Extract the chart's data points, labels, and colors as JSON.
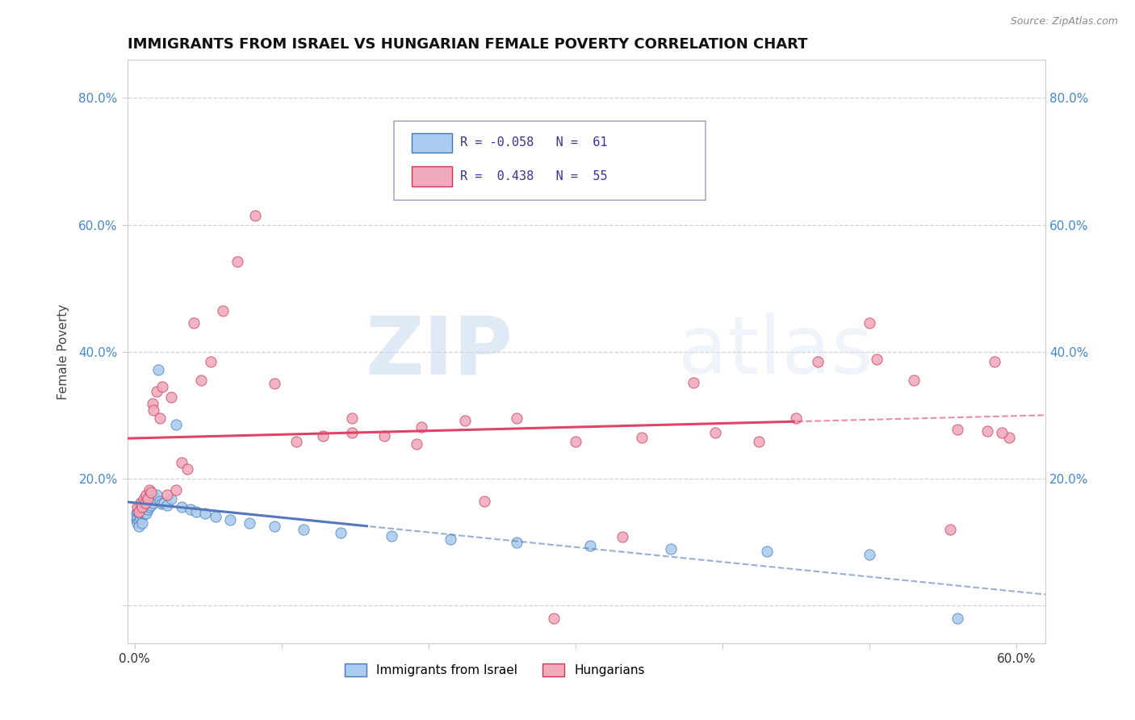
{
  "title": "IMMIGRANTS FROM ISRAEL VS HUNGARIAN FEMALE POVERTY CORRELATION CHART",
  "source": "Source: ZipAtlas.com",
  "ylabel": "Female Poverty",
  "legend_label1": "Immigrants from Israel",
  "legend_label2": "Hungarians",
  "color_israel": "#aaccee",
  "color_hungarian": "#f0aabb",
  "color_israel_line": "#5577bb",
  "color_hungarian_line": "#dd4466",
  "color_israel_dark": "#4477bb",
  "color_hungarian_dark": "#cc3355",
  "xlim": [
    -0.005,
    0.62
  ],
  "ylim": [
    -0.06,
    0.86
  ],
  "yticks": [
    0.0,
    0.2,
    0.4,
    0.6,
    0.8
  ],
  "yticklabels_left": [
    "",
    "20.0%",
    "40.0%",
    "60.0%",
    "80.0%"
  ],
  "yticklabels_right": [
    "",
    "20.0%",
    "40.0%",
    "60.0%",
    "80.0%"
  ],
  "xticks": [
    0.0,
    0.1,
    0.2,
    0.3,
    0.4,
    0.5,
    0.6
  ],
  "xticklabels": [
    "0.0%",
    "",
    "",
    "",
    "",
    "",
    "60.0%"
  ],
  "watermark_zip": "ZIP",
  "watermark_atlas": "atlas",
  "background_color": "#ffffff",
  "grid_color": "#cccccc",
  "israel_x": [
    0.001,
    0.001,
    0.002,
    0.002,
    0.002,
    0.003,
    0.003,
    0.003,
    0.003,
    0.004,
    0.004,
    0.004,
    0.005,
    0.005,
    0.005,
    0.005,
    0.006,
    0.006,
    0.006,
    0.007,
    0.007,
    0.007,
    0.008,
    0.008,
    0.008,
    0.009,
    0.009,
    0.01,
    0.01,
    0.011,
    0.011,
    0.012,
    0.012,
    0.013,
    0.014,
    0.015,
    0.016,
    0.017,
    0.018,
    0.02,
    0.022,
    0.025,
    0.028,
    0.032,
    0.038,
    0.042,
    0.048,
    0.055,
    0.065,
    0.078,
    0.095,
    0.115,
    0.14,
    0.175,
    0.215,
    0.26,
    0.31,
    0.365,
    0.43,
    0.5,
    0.56
  ],
  "israel_y": [
    0.145,
    0.135,
    0.148,
    0.138,
    0.13,
    0.155,
    0.145,
    0.132,
    0.125,
    0.158,
    0.148,
    0.138,
    0.162,
    0.152,
    0.142,
    0.13,
    0.165,
    0.155,
    0.145,
    0.168,
    0.158,
    0.145,
    0.165,
    0.155,
    0.145,
    0.162,
    0.152,
    0.168,
    0.155,
    0.17,
    0.158,
    0.175,
    0.162,
    0.17,
    0.168,
    0.175,
    0.372,
    0.165,
    0.16,
    0.162,
    0.158,
    0.168,
    0.285,
    0.155,
    0.152,
    0.148,
    0.145,
    0.14,
    0.135,
    0.13,
    0.125,
    0.12,
    0.115,
    0.11,
    0.105,
    0.1,
    0.095,
    0.09,
    0.085,
    0.08,
    -0.02
  ],
  "hungarian_x": [
    0.002,
    0.003,
    0.004,
    0.005,
    0.006,
    0.007,
    0.008,
    0.009,
    0.01,
    0.011,
    0.012,
    0.013,
    0.015,
    0.017,
    0.019,
    0.022,
    0.025,
    0.028,
    0.032,
    0.036,
    0.04,
    0.045,
    0.052,
    0.06,
    0.07,
    0.082,
    0.095,
    0.11,
    0.128,
    0.148,
    0.17,
    0.195,
    0.225,
    0.26,
    0.3,
    0.345,
    0.395,
    0.45,
    0.505,
    0.555,
    0.585,
    0.595,
    0.59,
    0.58,
    0.56,
    0.53,
    0.5,
    0.465,
    0.425,
    0.38,
    0.332,
    0.285,
    0.238,
    0.192,
    0.148
  ],
  "hungarian_y": [
    0.155,
    0.148,
    0.162,
    0.155,
    0.168,
    0.162,
    0.175,
    0.168,
    0.182,
    0.178,
    0.318,
    0.308,
    0.338,
    0.295,
    0.345,
    0.175,
    0.328,
    0.182,
    0.225,
    0.215,
    0.445,
    0.355,
    0.385,
    0.465,
    0.542,
    0.615,
    0.35,
    0.258,
    0.268,
    0.272,
    0.268,
    0.282,
    0.292,
    0.295,
    0.258,
    0.265,
    0.272,
    0.295,
    0.388,
    0.12,
    0.385,
    0.265,
    0.272,
    0.275,
    0.278,
    0.355,
    0.445,
    0.385,
    0.258,
    0.352,
    0.108,
    -0.02,
    0.165,
    0.255,
    0.295
  ]
}
